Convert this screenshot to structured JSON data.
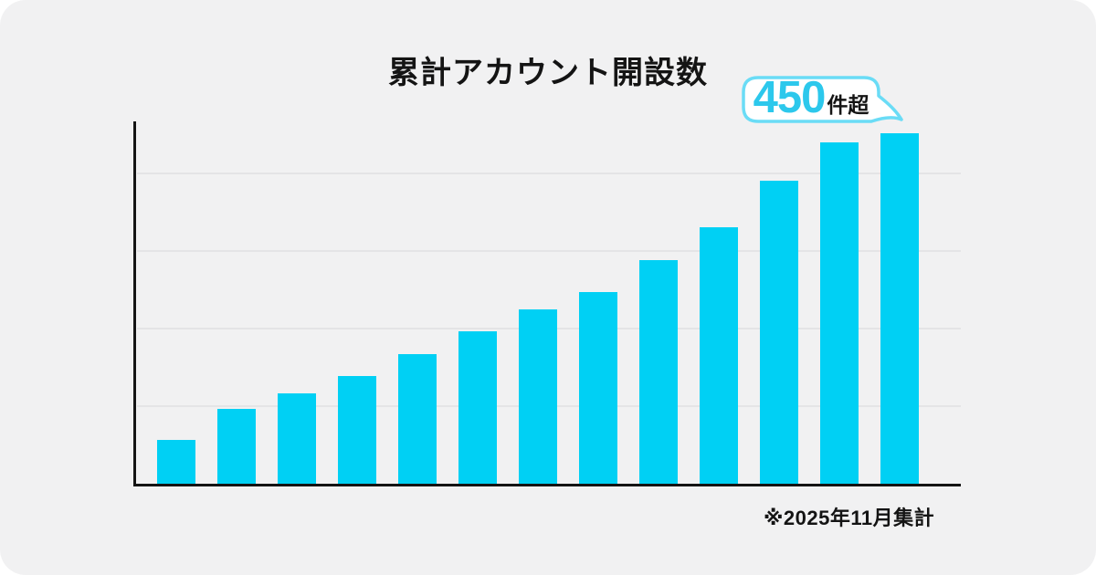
{
  "title": "累計アカウント開設数",
  "callout": {
    "value": "450",
    "suffix": "件超"
  },
  "footnote": "※2025年11月集計",
  "colors": {
    "page_background": "#ffffff",
    "card_background": "#f1f1f2",
    "bar": "#00d0f4",
    "bubble_border": "#6adcf6",
    "bubble_fill": "#ffffff",
    "bubble_value_text": "#2cc8ec",
    "axis_and_text": "#141414",
    "gridline": "#e4e4e6"
  },
  "chart_data": {
    "type": "bar",
    "title": "累計アカウント開設数",
    "values": [
      56,
      97,
      117,
      139,
      167,
      196,
      225,
      247,
      288,
      331,
      391,
      440,
      452
    ],
    "bar_count": 13,
    "xlabel": "",
    "ylabel": "",
    "x_tick_labels": [],
    "y_tick_labels": [],
    "ylim": [
      0,
      466
    ],
    "gridline_values": [
      100,
      200,
      300,
      400
    ],
    "grid": "horizontal",
    "legend": "none",
    "annotation": {
      "text": "450件超",
      "target_bar_index": 12
    }
  }
}
